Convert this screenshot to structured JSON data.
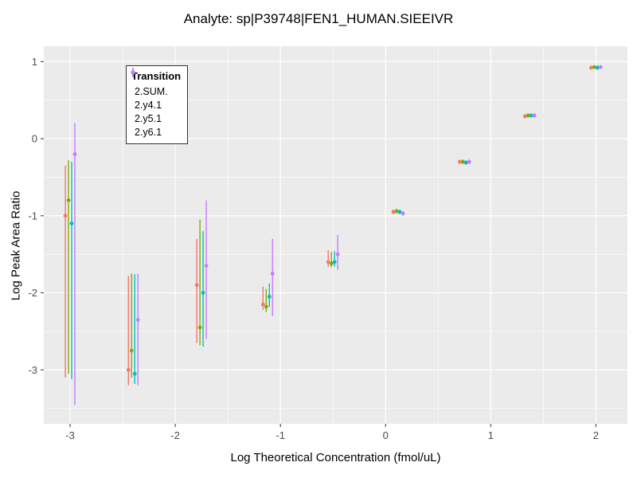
{
  "chart_data": {
    "type": "scatter",
    "title": "Analyte: sp|P39748|FEN1_HUMAN.SIEEIVR",
    "xlabel": "Log Theoretical Concentration (fmol/uL)",
    "ylabel": "Log Peak Area Ratio",
    "legend_title": "Transition",
    "legend_position": "inside-top-left",
    "grid": true,
    "panel_bg": "#EBEBEB",
    "grid_major_color": "#FFFFFF",
    "grid_minor_color": "#FFFFFF",
    "tick_label_color": "#4d4d4d",
    "x_ticks": [
      -3,
      -2,
      -1,
      0,
      1,
      2
    ],
    "y_ticks": [
      1,
      0,
      -1,
      -2,
      -3
    ],
    "xlim": [
      -3.25,
      2.3
    ],
    "ylim": [
      -3.7,
      1.2
    ],
    "x": [
      -3.0,
      -2.4,
      -1.75,
      -1.12,
      -0.5,
      0.12,
      0.75,
      1.37,
      2.0
    ],
    "series": [
      {
        "name": "2.SUM.",
        "color": "#F8766D",
        "dodge": -0.045,
        "y": [
          -1.0,
          -3.0,
          -1.9,
          -2.15,
          -1.6,
          -0.95,
          -0.3,
          0.29,
          0.92
        ],
        "ylow": [
          -3.1,
          -3.2,
          -2.65,
          -2.22,
          -1.66,
          -0.98,
          -0.33,
          0.27,
          0.9
        ],
        "yhigh": [
          -0.35,
          -1.78,
          -1.3,
          -1.92,
          -1.45,
          -0.92,
          -0.27,
          0.32,
          0.95
        ]
      },
      {
        "name": "2.y4.1",
        "color": "#7CAE00",
        "dodge": -0.015,
        "y": [
          -0.8,
          -2.75,
          -2.45,
          -2.18,
          -1.62,
          -0.94,
          -0.3,
          0.3,
          0.93
        ],
        "ylow": [
          -3.05,
          -3.1,
          -2.68,
          -2.25,
          -1.67,
          -0.97,
          -0.33,
          0.28,
          0.91
        ],
        "yhigh": [
          -0.28,
          -1.75,
          -1.05,
          -1.95,
          -1.47,
          -0.91,
          -0.27,
          0.33,
          0.95
        ]
      },
      {
        "name": "2.y5.1",
        "color": "#00BFC4",
        "dodge": 0.015,
        "y": [
          -1.1,
          -3.05,
          -2.0,
          -2.05,
          -1.6,
          -0.95,
          -0.31,
          0.3,
          0.92
        ],
        "ylow": [
          -3.12,
          -3.18,
          -2.7,
          -2.18,
          -1.66,
          -0.98,
          -0.34,
          0.28,
          0.9
        ],
        "yhigh": [
          -0.3,
          -1.76,
          -1.2,
          -1.88,
          -1.46,
          -0.92,
          -0.28,
          0.33,
          0.95
        ]
      },
      {
        "name": "2.y6.1",
        "color": "#C77CFF",
        "dodge": 0.045,
        "y": [
          -0.2,
          -2.35,
          -1.65,
          -1.75,
          -1.5,
          -0.97,
          -0.3,
          0.3,
          0.93
        ],
        "ylow": [
          -3.45,
          -3.2,
          -2.6,
          -2.3,
          -1.7,
          -1.0,
          -0.33,
          0.28,
          0.91
        ],
        "yhigh": [
          0.2,
          -1.75,
          -0.8,
          -1.3,
          -1.25,
          -0.94,
          -0.27,
          0.33,
          0.95
        ]
      }
    ]
  }
}
